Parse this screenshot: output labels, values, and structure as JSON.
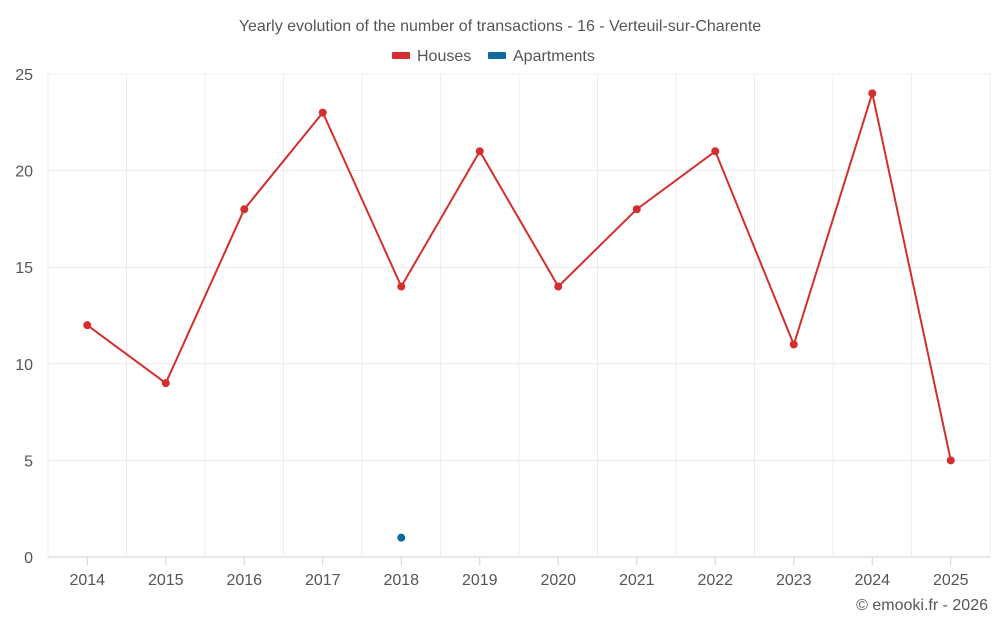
{
  "chart_data": {
    "type": "line",
    "title": "Yearly evolution of the number of transactions - 16 - Verteuil-sur-Charente",
    "categories": [
      "2014",
      "2015",
      "2016",
      "2017",
      "2018",
      "2019",
      "2020",
      "2021",
      "2022",
      "2023",
      "2024",
      "2025"
    ],
    "series": [
      {
        "name": "Houses",
        "color": "#d32f2f",
        "values": [
          12,
          9,
          18,
          23,
          14,
          21,
          14,
          18,
          21,
          11,
          24,
          5
        ]
      },
      {
        "name": "Apartments",
        "color": "#0d6a9f",
        "values": [
          null,
          null,
          null,
          null,
          1,
          null,
          null,
          null,
          null,
          null,
          null,
          null
        ]
      }
    ],
    "ylim": [
      0,
      25
    ],
    "yticks": [
      0,
      5,
      10,
      15,
      20,
      25
    ],
    "grid": true,
    "legend": "top-center",
    "xlabel": "",
    "ylabel": ""
  },
  "credit": "© emooki.fr - 2026"
}
